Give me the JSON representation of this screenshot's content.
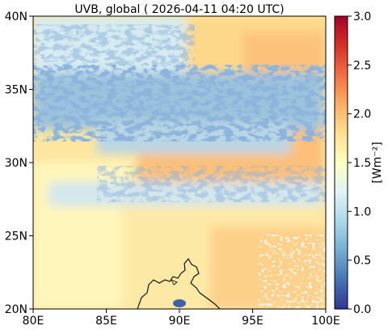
{
  "title": "UVB, global ( 2026-04-11 04:20 UTC)",
  "map": {
    "x_ticks": [
      "80E",
      "85E",
      "90E",
      "95E",
      "100E"
    ],
    "y_ticks": [
      "20N",
      "25N",
      "30N",
      "35N",
      "40N"
    ],
    "lon_range": [
      80,
      100
    ],
    "lat_range": [
      20,
      40
    ]
  },
  "colorbar": {
    "label": "[Wm⁻²]",
    "ticks": [
      "0.0",
      "0.5",
      "1.0",
      "1.5",
      "2.0",
      "2.5",
      "3.0"
    ],
    "range": [
      0,
      3
    ],
    "colormap": "RdYlBu_r",
    "colors": [
      "#313695",
      "#4575b4",
      "#74add1",
      "#abd9e9",
      "#e0f3f8",
      "#ffffbf",
      "#fee090",
      "#fdae61",
      "#f46d43",
      "#d73027",
      "#a50026"
    ]
  }
}
